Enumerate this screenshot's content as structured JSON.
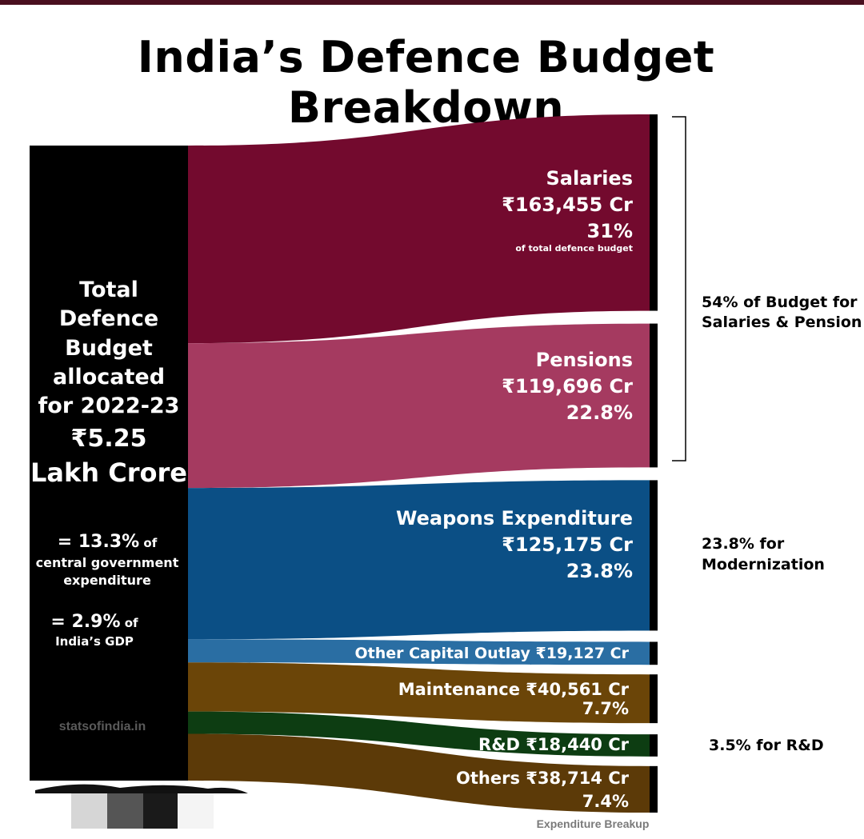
{
  "title": "India’s Defence Budget Breakdown",
  "source_block": {
    "lines": [
      "Total",
      "Defence",
      "Budget",
      "allocated",
      "for 2022-23"
    ],
    "total_value": "₹5.25",
    "total_unit": "Lakh Crore",
    "stat1_value": "= 13.3%",
    "stat1_of": " of",
    "stat1_line2": "central government",
    "stat1_line3": "expenditure",
    "stat2_value": "= 2.9%",
    "stat2_of": " of",
    "stat2_line2": "India’s GDP",
    "watermark": "statsofindia.in"
  },
  "caption": "Expenditure Breakup",
  "groups": [
    {
      "label_line1": "54% of Budget for",
      "label_line2": "Salaries & Pension"
    },
    {
      "label_line1": "23.8% for",
      "label_line2": "Modernization"
    },
    {
      "label_line1": "3.5% for R&D",
      "label_line2": ""
    }
  ],
  "colors": {
    "salaries": "#730a2e",
    "pensions": "#a53a60",
    "weapons": "#0b4f85",
    "other_capital": "#2a6ea3",
    "maintenance": "#6b4508",
    "rnd": "#0d3d12",
    "others": "#5c3a08",
    "source": "#000000"
  },
  "chart_data": {
    "type": "sankey",
    "title": "India’s Defence Budget Breakdown",
    "source": "Total Defence Budget allocated for 2022-23",
    "total_lakh_crore": 5.25,
    "unit": "₹ Cr",
    "flows": [
      {
        "key": "salaries",
        "name": "Salaries",
        "value": 163455,
        "value_text": "₹163,455 Cr",
        "pct": 31,
        "pct_text": "31%",
        "note": "of total defence budget"
      },
      {
        "key": "pensions",
        "name": "Pensions",
        "value": 119696,
        "value_text": "₹119,696 Cr",
        "pct": 22.8,
        "pct_text": "22.8%"
      },
      {
        "key": "weapons",
        "name": "Weapons Expenditure",
        "value": 125175,
        "value_text": "₹125,175 Cr",
        "pct": 23.8,
        "pct_text": "23.8%"
      },
      {
        "key": "other_capital",
        "name": "Other Capital Outlay",
        "value": 19127,
        "value_text": "₹19,127 Cr"
      },
      {
        "key": "maintenance",
        "name": "Maintenance",
        "value": 40561,
        "value_text": "₹40,561 Cr",
        "pct": 7.7,
        "pct_text": "7.7%"
      },
      {
        "key": "rnd",
        "name": "R&D",
        "value": 18440,
        "value_text": "₹18,440 Cr"
      },
      {
        "key": "others",
        "name": "Others",
        "value": 38714,
        "value_text": "₹38,714 Cr",
        "pct": 7.4,
        "pct_text": "7.4%"
      }
    ]
  }
}
